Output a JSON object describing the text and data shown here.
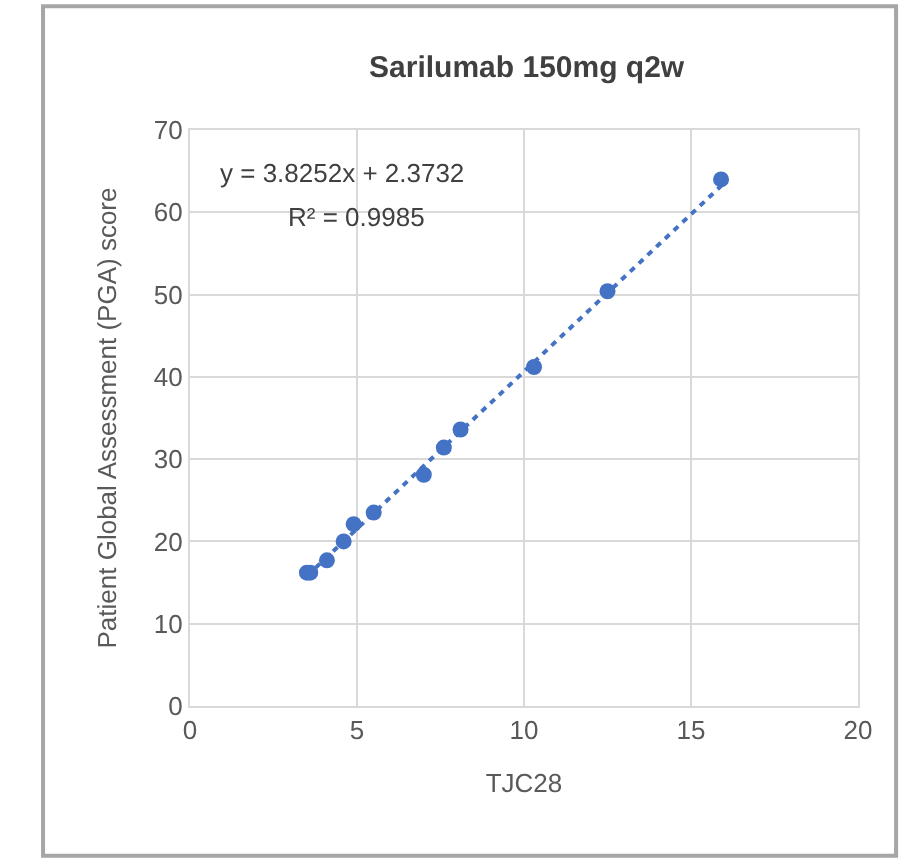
{
  "chart_data": {
    "type": "scatter",
    "title": "Sarilumab 150mg q2w",
    "xlabel": "TJC28",
    "ylabel": "Patient Global Assessment (PGA) score",
    "annotations": [
      "y = 3.8252x + 2.3732",
      "R² = 0.9985"
    ],
    "series": [
      {
        "color": "#4472c4",
        "marker": "circle",
        "x": [
          3.5,
          3.6,
          4.1,
          4.6,
          4.9,
          5.5,
          7.0,
          7.6,
          8.1,
          10.3,
          12.5,
          15.9
        ],
        "values": [
          16.2,
          16.2,
          17.7,
          20.0,
          22.1,
          23.5,
          28.1,
          31.4,
          33.6,
          41.2,
          50.4,
          64.0
        ]
      },
      {
        "type": "line",
        "color": "#4472c4",
        "line_style": "dotted",
        "marker": "none",
        "x": [
          3.5,
          15.9
        ],
        "values": [
          15.8,
          63.2
        ]
      }
    ],
    "xlim": [
      0,
      20
    ],
    "xticks": [
      0,
      5,
      10,
      15,
      20
    ],
    "ylim": [
      0,
      70
    ],
    "yticks": [
      0,
      10,
      20,
      30,
      40,
      50,
      60,
      70
    ],
    "grid": true
  }
}
